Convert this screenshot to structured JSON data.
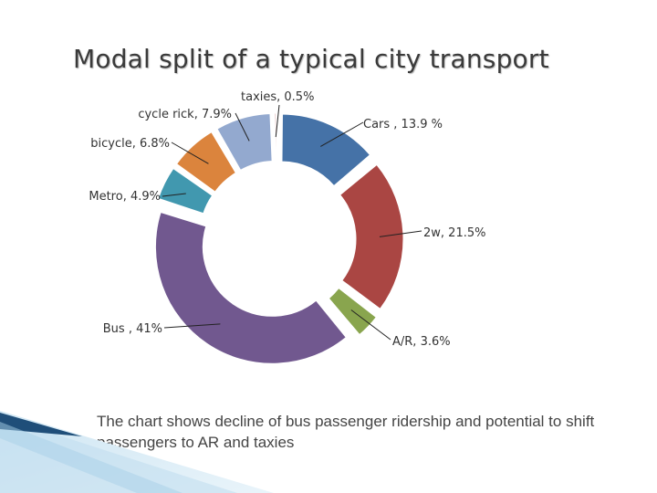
{
  "slide": {
    "title": "Modal split of  a typical city transport",
    "caption": "The chart shows decline of bus passenger ridership and potential to shift passengers to AR and taxies"
  },
  "chart_data": {
    "type": "pie",
    "variant": "exploded-doughnut",
    "title": "Modal split of  a typical city transport",
    "unit": "%",
    "slices": [
      {
        "label": "Cars , 13.9 %",
        "value": 13.9,
        "color": "#4572a7"
      },
      {
        "label": "2w, 21.5%",
        "value": 21.5,
        "color": "#aa4643"
      },
      {
        "label": "A/R, 3.6%",
        "value": 3.6,
        "color": "#89a54e"
      },
      {
        "label": "Bus , 41%",
        "value": 41.0,
        "color": "#71588f"
      },
      {
        "label": "Metro, 4.9%",
        "value": 4.9,
        "color": "#4198af"
      },
      {
        "label": "bicycle, 6.8%",
        "value": 6.8,
        "color": "#db843d"
      },
      {
        "label": "cycle rick, 7.9%",
        "value": 7.9,
        "color": "#93a9cf"
      },
      {
        "label": "taxies, 0.5%",
        "value": 0.5,
        "color": "#d19392"
      }
    ],
    "legend": "none",
    "data_labels": "outside-with-leader-lines"
  }
}
